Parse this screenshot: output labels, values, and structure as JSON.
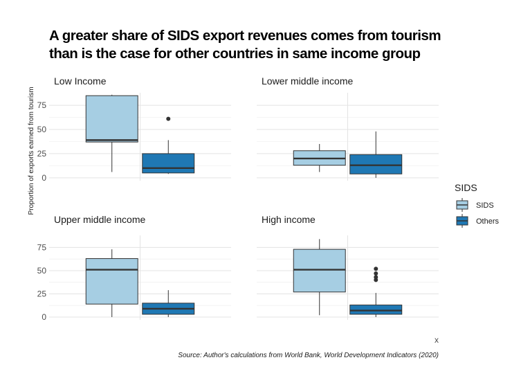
{
  "chart_data": {
    "type": "boxplot",
    "title_lines": [
      "A greater share of SIDS export revenues comes from tourism",
      "than is the case for other countries in same income group"
    ],
    "xlabel": "x",
    "ylabel": "Proportion of exports earned from tourism",
    "y_ticks": [
      0,
      25,
      50,
      75
    ],
    "ylim": [
      -3,
      88
    ],
    "grid": true,
    "legend": {
      "title": "SIDS",
      "position": "right",
      "entries": [
        {
          "label": "SIDS",
          "color": "#a6cee3"
        },
        {
          "label": "Others",
          "color": "#1f78b4"
        }
      ]
    },
    "caption": "Source: Author's calculations from World Bank, World Development Indicators (2020)",
    "facets": [
      {
        "title": "Low Income",
        "boxes": [
          {
            "group": "SIDS",
            "min": 6,
            "q1": 37,
            "median": 39,
            "q3": 85,
            "max": 86,
            "outliers": []
          },
          {
            "group": "Others",
            "min": 4,
            "q1": 5,
            "median": 10,
            "q3": 25,
            "max": 39,
            "outliers": [
              61
            ]
          }
        ]
      },
      {
        "title": "Lower middle income",
        "boxes": [
          {
            "group": "SIDS",
            "min": 6,
            "q1": 13,
            "median": 20,
            "q3": 28,
            "max": 35,
            "outliers": []
          },
          {
            "group": "Others",
            "min": 0,
            "q1": 4,
            "median": 13,
            "q3": 24,
            "max": 48,
            "outliers": []
          }
        ]
      },
      {
        "title": "Upper middle income",
        "boxes": [
          {
            "group": "SIDS",
            "min": 0,
            "q1": 14,
            "median": 51,
            "q3": 63,
            "max": 73,
            "outliers": []
          },
          {
            "group": "Others",
            "min": 0,
            "q1": 3,
            "median": 9,
            "q3": 15,
            "max": 29,
            "outliers": []
          }
        ]
      },
      {
        "title": "High income",
        "boxes": [
          {
            "group": "SIDS",
            "min": 2,
            "q1": 27,
            "median": 51,
            "q3": 73,
            "max": 84,
            "outliers": []
          },
          {
            "group": "Others",
            "min": 0,
            "q1": 3,
            "median": 7,
            "q3": 13,
            "max": 26,
            "outliers": [
              40,
              43,
              47,
              52
            ]
          }
        ]
      }
    ]
  }
}
